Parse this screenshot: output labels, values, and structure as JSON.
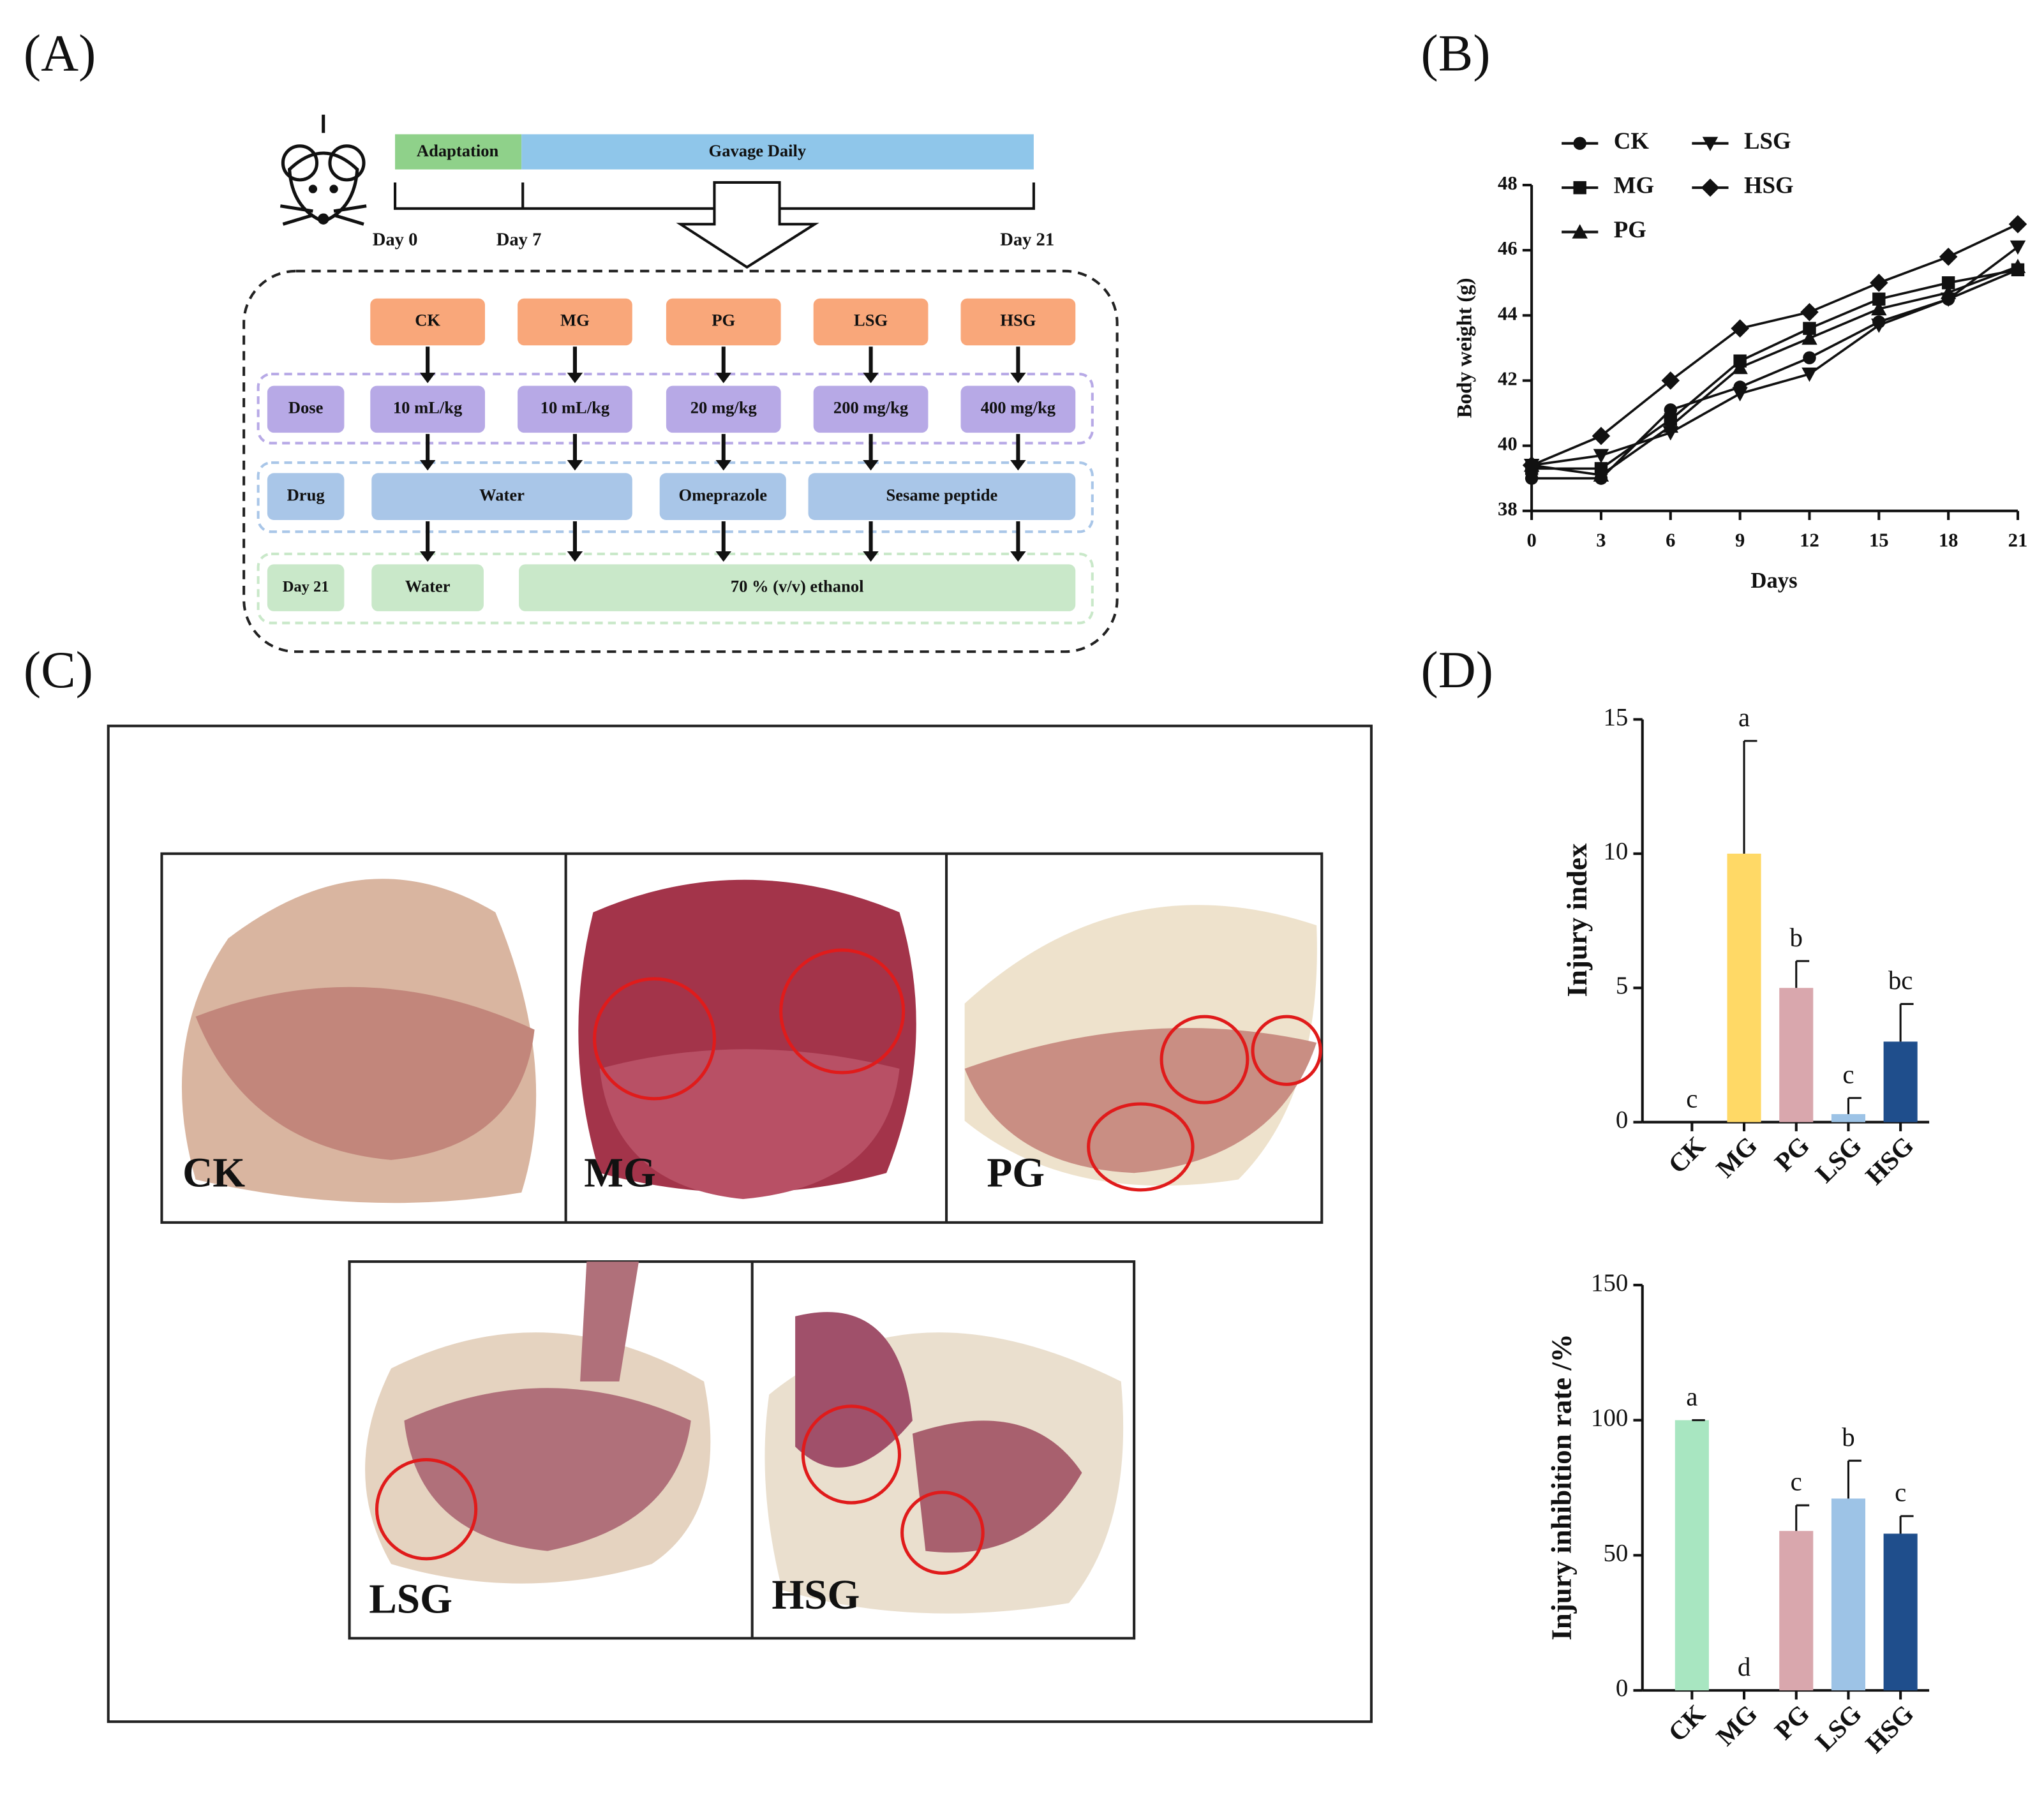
{
  "panel_labels": [
    "(A)",
    "(B)",
    "(C)",
    "(D)"
  ],
  "panel_a": {
    "timeline": {
      "adaptation": "Adaptation",
      "gavage": "Gavage Daily",
      "days": [
        "Day 0",
        "Day 7",
        "Day 21"
      ]
    },
    "groups": [
      "CK",
      "MG",
      "PG",
      "LSG",
      "HSG"
    ],
    "dose": {
      "label": "Dose",
      "values": [
        "10 mL/kg",
        "10 mL/kg",
        "20 mg/kg",
        "200 mg/kg",
        "400 mg/kg"
      ]
    },
    "drug": {
      "label": "Drug",
      "values": [
        "Water",
        "Omeprazole",
        "Sesame peptide"
      ]
    },
    "day21": {
      "label": "Day 21",
      "values": [
        "Water",
        "70 % (v/v) ethanol"
      ]
    }
  },
  "panel_c": {
    "labels": [
      "CK",
      "MG",
      "PG",
      "LSG",
      "HSG"
    ]
  },
  "chart_data": [
    {
      "type": "line",
      "x_label": "Days",
      "y_label": "Body weight (g)",
      "x": [
        0,
        3,
        6,
        9,
        12,
        15,
        18,
        21
      ],
      "xlim": [
        0,
        21
      ],
      "xticks": [
        0,
        3,
        6,
        9,
        12,
        15,
        18,
        21
      ],
      "ylim": [
        38,
        48
      ],
      "yticks": [
        38,
        40,
        42,
        44,
        46,
        48
      ],
      "series": [
        {
          "name": "CK",
          "color": "#111111",
          "marker": "circle",
          "values": [
            39.0,
            39.0,
            41.1,
            41.8,
            42.7,
            43.8,
            44.5,
            45.4
          ]
        },
        {
          "name": "MG",
          "color": "#111111",
          "marker": "square",
          "values": [
            39.3,
            39.3,
            40.8,
            42.6,
            43.6,
            44.5,
            45.0,
            45.4
          ]
        },
        {
          "name": "PG",
          "color": "#111111",
          "marker": "triangle-up",
          "values": [
            39.4,
            39.1,
            40.6,
            42.4,
            43.3,
            44.2,
            44.7,
            45.5
          ]
        },
        {
          "name": "LSG",
          "color": "#111111",
          "marker": "triangle-down",
          "values": [
            39.4,
            39.7,
            40.4,
            41.6,
            42.2,
            43.7,
            44.5,
            46.1
          ]
        },
        {
          "name": "HSG",
          "color": "#111111",
          "marker": "diamond",
          "values": [
            39.4,
            40.3,
            42.0,
            43.6,
            44.1,
            45.0,
            45.8,
            46.8
          ]
        }
      ]
    },
    {
      "type": "bar",
      "y_label": "Injury index",
      "categories": [
        "CK",
        "MG",
        "PG",
        "LSG",
        "HSG"
      ],
      "values": [
        0,
        10,
        5,
        0.3,
        3
      ],
      "errors": [
        0,
        4.2,
        1.0,
        0.6,
        1.4
      ],
      "annotations": [
        "c",
        "a",
        "b",
        "c",
        "bc"
      ],
      "colors": [
        "#a8e6c1",
        "#ffd966",
        "#d9a7ad",
        "#9dc3e6",
        "#1f4e8c"
      ],
      "ylim": [
        0,
        15
      ],
      "yticks": [
        0,
        5,
        10,
        15
      ]
    },
    {
      "type": "bar",
      "y_label": "Injury inhibition rate /%",
      "categories": [
        "CK",
        "MG",
        "PG",
        "LSG",
        "HSG"
      ],
      "values": [
        100,
        0,
        59,
        71,
        58
      ],
      "errors": [
        0,
        0,
        9.5,
        14,
        6.5
      ],
      "annotations": [
        "a",
        "d",
        "c",
        "b",
        "c"
      ],
      "colors": [
        "#a8e6c1",
        "#ffd966",
        "#d9a7ad",
        "#9dc3e6",
        "#1f4e8c"
      ],
      "ylim": [
        0,
        150
      ],
      "yticks": [
        0,
        50,
        100,
        150
      ]
    }
  ]
}
